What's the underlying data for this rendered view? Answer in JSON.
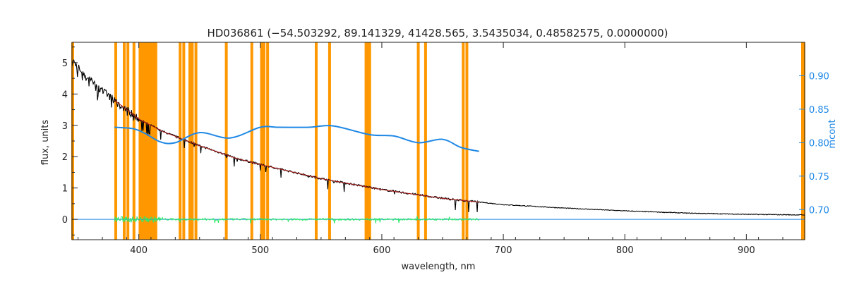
{
  "chart_data": {
    "type": "line",
    "title": "HD036861   (−54.503292, 89.141329, 41428.565, 3.5435034, 0.48582575, 0.0000000)",
    "xlabel": "wavelength, nm",
    "ylabel": "flux, units",
    "y2label": "mcont",
    "xlim": [
      345,
      948
    ],
    "ylim": [
      -0.65,
      5.65
    ],
    "y2lim": [
      0.655,
      0.95
    ],
    "x_ticks": [
      400,
      500,
      600,
      700,
      800,
      900
    ],
    "y_ticks": [
      0,
      1,
      2,
      3,
      4,
      5
    ],
    "y2_ticks": [
      0.7,
      0.75,
      0.8,
      0.85,
      0.9
    ],
    "grid": false,
    "colors": {
      "observed": "#000000",
      "model": "#b71c1c",
      "residual": "#2ee86a",
      "mcont": "#1e88e5",
      "masks": "#ff9800"
    },
    "series": [
      {
        "role": "observed",
        "axis": "left",
        "x": [
          345,
          350,
          360,
          370,
          380,
          390,
          400,
          420,
          450,
          480,
          500,
          550,
          600,
          650,
          700,
          750,
          800,
          850,
          900,
          948
        ],
        "values": [
          5.1,
          4.85,
          4.45,
          4.1,
          3.8,
          3.5,
          3.2,
          2.8,
          2.35,
          1.95,
          1.75,
          1.3,
          0.95,
          0.67,
          0.47,
          0.36,
          0.27,
          0.2,
          0.16,
          0.14
        ]
      },
      {
        "role": "model",
        "axis": "left",
        "x": [
          380,
          390,
          400,
          420,
          450,
          480,
          500,
          550,
          600,
          650,
          680
        ],
        "values": [
          3.8,
          3.5,
          3.2,
          2.8,
          2.35,
          1.95,
          1.75,
          1.3,
          0.95,
          0.67,
          0.55
        ]
      },
      {
        "role": "residual",
        "axis": "left",
        "x": [
          380,
          680
        ],
        "values": [
          0,
          0
        ]
      },
      {
        "role": "mcont",
        "axis": "right",
        "x": [
          380,
          395,
          405,
          418,
          430,
          450,
          475,
          500,
          515,
          540,
          560,
          590,
          610,
          630,
          650,
          665,
          680
        ],
        "values": [
          0.823,
          0.821,
          0.814,
          0.801,
          0.8,
          0.815,
          0.807,
          0.823,
          0.823,
          0.823,
          0.825,
          0.812,
          0.81,
          0.8,
          0.805,
          0.793,
          0.787
        ]
      }
    ],
    "zero_line": {
      "axis": "left",
      "y": 0
    },
    "mask_lines": [
      381,
      388,
      391,
      396,
      401,
      403,
      404,
      406,
      408,
      410,
      411,
      413,
      414,
      434,
      437,
      442,
      444,
      447,
      472,
      493,
      501,
      503,
      506,
      546,
      557,
      587,
      588,
      589,
      590,
      630,
      636,
      667,
      670
    ]
  }
}
